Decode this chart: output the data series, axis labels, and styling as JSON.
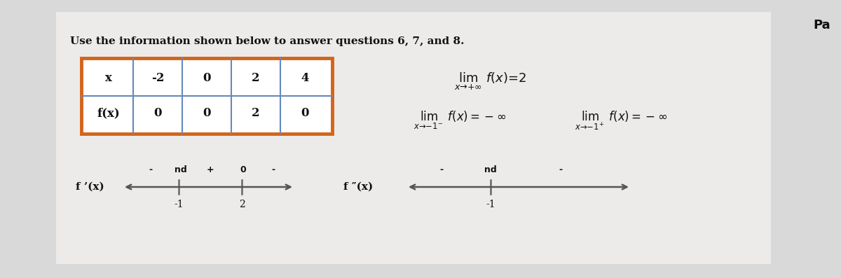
{
  "title": "Use the information shown below to answer questions 6, 7, and 8.",
  "page_label": "Pa",
  "table_x_values": [
    "x",
    "-2",
    "0",
    "2",
    "4"
  ],
  "table_fx_values": [
    "f(x)",
    "0",
    "0",
    "2",
    "0"
  ],
  "fprime_label": "f ’(x)",
  "fprimeprime_label": "f ″(x)",
  "fprime_signs": [
    "-",
    "nd",
    "+",
    "0",
    "-"
  ],
  "fprime_ticks": [
    "-1",
    "2"
  ],
  "fprimeprime_signs": [
    "-",
    "nd",
    "-"
  ],
  "fprimeprime_ticks": [
    "-1"
  ],
  "table_border_color": "#d4641a",
  "table_inner_color": "#6688bb",
  "text_color": "#111111",
  "bg_color": "#e8e8e8"
}
